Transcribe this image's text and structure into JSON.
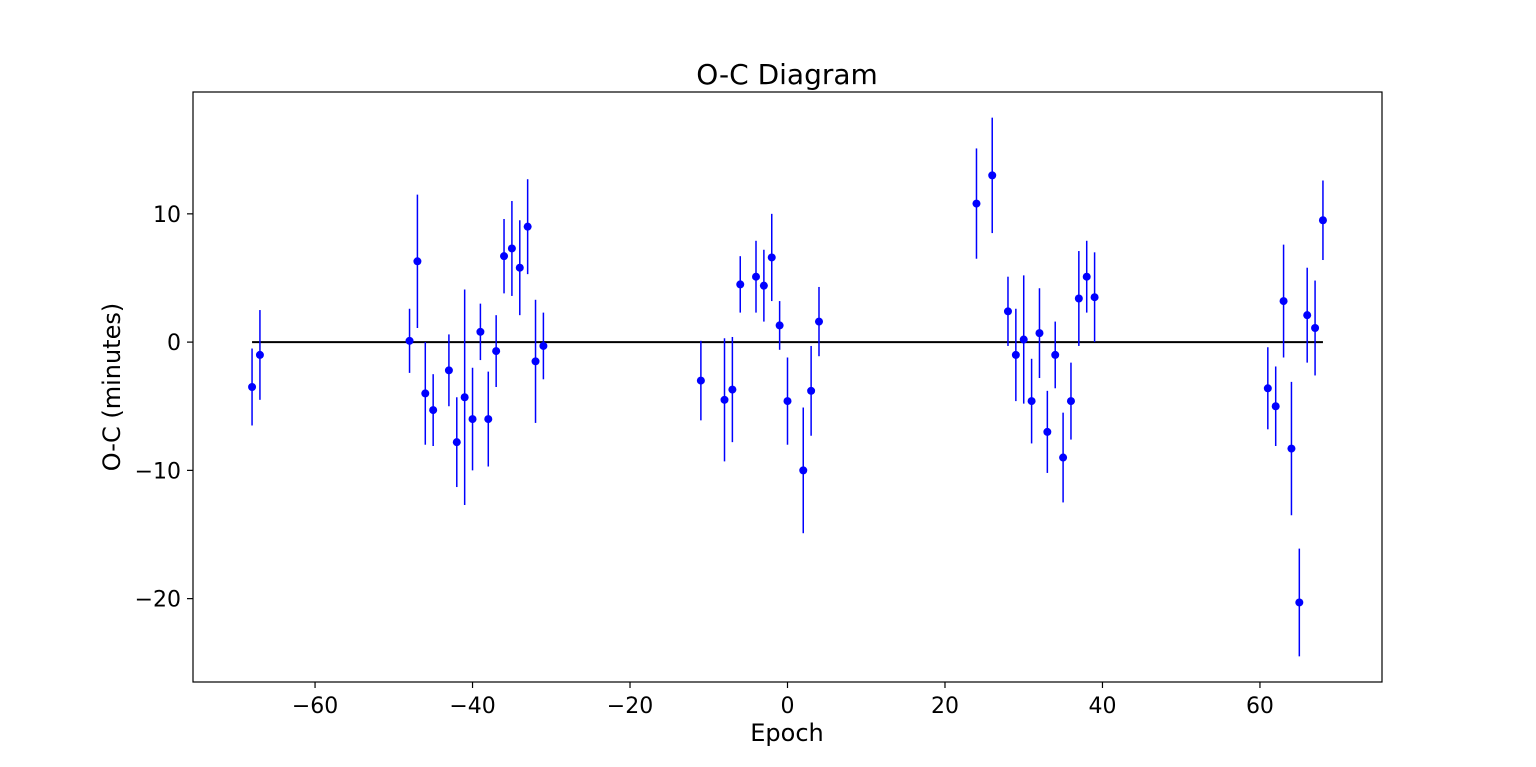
{
  "chart_data": {
    "type": "scatter",
    "title": "O-C Diagram",
    "xlabel": "Epoch",
    "ylabel": "O-C (minutes)",
    "xlim": [
      -75.5,
      75.5
    ],
    "ylim": [
      -26.5,
      19.5
    ],
    "xticks": [
      -60,
      -40,
      -20,
      0,
      20,
      40,
      60
    ],
    "yticks": [
      -20,
      -10,
      0,
      10
    ],
    "grid": false,
    "marker_color": "#0000ff",
    "reference_line": {
      "y": 0,
      "x_from": -68,
      "x_to": 68,
      "color": "#000000"
    },
    "series": [
      {
        "points": [
          {
            "x": -68,
            "y": -3.5,
            "err": 3.0
          },
          {
            "x": -67,
            "y": -1.0,
            "err": 3.5
          },
          {
            "x": -48,
            "y": 0.1,
            "err": 2.5
          },
          {
            "x": -47,
            "y": 6.3,
            "err": 5.2
          },
          {
            "x": -46,
            "y": -4.0,
            "err": 4.0
          },
          {
            "x": -45,
            "y": -5.3,
            "err": 2.8
          },
          {
            "x": -43,
            "y": -2.2,
            "err": 2.8
          },
          {
            "x": -42,
            "y": -7.8,
            "err": 3.5
          },
          {
            "x": -41,
            "y": -4.3,
            "err": 8.4
          },
          {
            "x": -40,
            "y": -6.0,
            "err": 4.0
          },
          {
            "x": -39,
            "y": 0.8,
            "err": 2.2
          },
          {
            "x": -38,
            "y": -6.0,
            "err": 3.7
          },
          {
            "x": -37,
            "y": -0.7,
            "err": 2.8
          },
          {
            "x": -36,
            "y": 6.7,
            "err": 2.9
          },
          {
            "x": -35,
            "y": 7.3,
            "err": 3.7
          },
          {
            "x": -34,
            "y": 5.8,
            "err": 3.7
          },
          {
            "x": -33,
            "y": 9.0,
            "err": 3.7
          },
          {
            "x": -32,
            "y": -1.5,
            "err": 4.8
          },
          {
            "x": -31,
            "y": -0.3,
            "err": 2.6
          },
          {
            "x": -11,
            "y": -3.0,
            "err": 3.1
          },
          {
            "x": -8,
            "y": -4.5,
            "err": 4.8
          },
          {
            "x": -7,
            "y": -3.7,
            "err": 4.1
          },
          {
            "x": -6,
            "y": 4.5,
            "err": 2.2
          },
          {
            "x": -4,
            "y": 5.1,
            "err": 2.8
          },
          {
            "x": -3,
            "y": 4.4,
            "err": 2.8
          },
          {
            "x": -2,
            "y": 6.6,
            "err": 3.4
          },
          {
            "x": -1,
            "y": 1.3,
            "err": 1.9
          },
          {
            "x": 0,
            "y": -4.6,
            "err": 3.4
          },
          {
            "x": 2,
            "y": -10.0,
            "err": 4.9
          },
          {
            "x": 3,
            "y": -3.8,
            "err": 3.5
          },
          {
            "x": 4,
            "y": 1.6,
            "err": 2.7
          },
          {
            "x": 24,
            "y": 10.8,
            "err": 4.3
          },
          {
            "x": 26,
            "y": 13.0,
            "err": 4.5
          },
          {
            "x": 28,
            "y": 2.4,
            "err": 2.7
          },
          {
            "x": 29,
            "y": -1.0,
            "err": 3.6
          },
          {
            "x": 30,
            "y": 0.2,
            "err": 5.0
          },
          {
            "x": 31,
            "y": -4.6,
            "err": 3.3
          },
          {
            "x": 32,
            "y": 0.7,
            "err": 3.5
          },
          {
            "x": 33,
            "y": -7.0,
            "err": 3.2
          },
          {
            "x": 34,
            "y": -1.0,
            "err": 2.6
          },
          {
            "x": 35,
            "y": -9.0,
            "err": 3.5
          },
          {
            "x": 36,
            "y": -4.6,
            "err": 3.0
          },
          {
            "x": 37,
            "y": 3.4,
            "err": 3.7
          },
          {
            "x": 38,
            "y": 5.1,
            "err": 2.8
          },
          {
            "x": 39,
            "y": 3.5,
            "err": 3.5
          },
          {
            "x": 61,
            "y": -3.6,
            "err": 3.2
          },
          {
            "x": 62,
            "y": -5.0,
            "err": 3.1
          },
          {
            "x": 63,
            "y": 3.2,
            "err": 4.4
          },
          {
            "x": 64,
            "y": -8.3,
            "err": 5.2
          },
          {
            "x": 65,
            "y": -20.3,
            "err": 4.2
          },
          {
            "x": 66,
            "y": 2.1,
            "err": 3.7
          },
          {
            "x": 67,
            "y": 1.1,
            "err": 3.7
          },
          {
            "x": 68,
            "y": 9.5,
            "err": 3.1
          }
        ]
      }
    ]
  }
}
